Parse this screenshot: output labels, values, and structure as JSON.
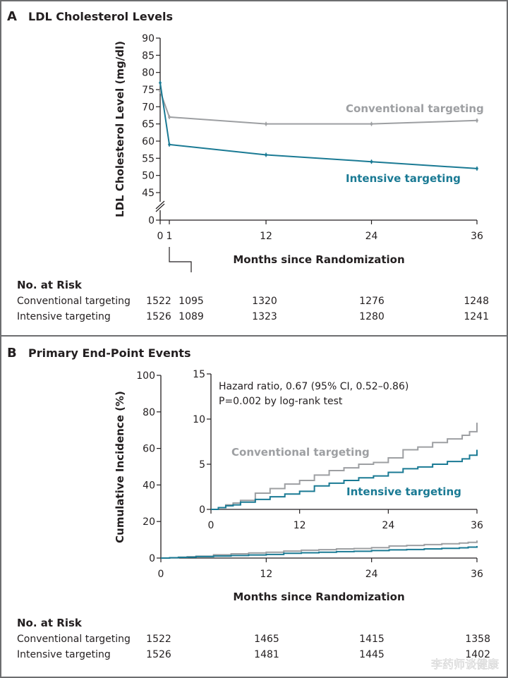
{
  "colors": {
    "conventional": "#9d9fa2",
    "intensive": "#1a7a94",
    "axis": "#231f20",
    "frame": "#6d6e70"
  },
  "watermark": "李药师谈健康",
  "chart_data": [
    {
      "panel": "A",
      "type": "line",
      "title": "LDL Cholesterol Levels",
      "xlabel": "Months since Randomization",
      "ylabel": "LDL Cholesterol Level (mg/dl)",
      "xlim": [
        0,
        36
      ],
      "ylim": [
        45,
        90
      ],
      "y_axis_break": true,
      "x_ticks": [
        0,
        1,
        12,
        24,
        36
      ],
      "x_tick_labels": [
        "0",
        "1",
        "12",
        "24",
        "36"
      ],
      "y_ticks": [
        0,
        45,
        50,
        55,
        60,
        65,
        70,
        75,
        80,
        85,
        90
      ],
      "y_tick_labels": [
        "0",
        "45",
        "50",
        "55",
        "60",
        "65",
        "70",
        "75",
        "80",
        "85",
        "90"
      ],
      "x": [
        0,
        1,
        12,
        24,
        36
      ],
      "series": [
        {
          "name": "Conventional targeting",
          "key": "conventional",
          "values": [
            74.5,
            67,
            65,
            65,
            66
          ]
        },
        {
          "name": "Intensive targeting",
          "key": "intensive",
          "values": [
            77,
            59,
            56,
            54,
            52
          ]
        }
      ],
      "no_at_risk": {
        "heading": "No. at Risk",
        "rows": [
          {
            "label": "Conventional targeting",
            "values": [
              "1522",
              "1095",
              "1320",
              "1276",
              "1248"
            ]
          },
          {
            "label": "Intensive targeting",
            "values": [
              "1526",
              "1089",
              "1323",
              "1280",
              "1241"
            ]
          }
        ]
      }
    },
    {
      "panel": "B",
      "type": "line",
      "title": "Primary End-Point Events",
      "xlabel": "Months since Randomization",
      "ylabel": "Cumulative Incidence (%)",
      "xlim": [
        0,
        36
      ],
      "ylim": [
        0,
        100
      ],
      "x_ticks": [
        0,
        12,
        24,
        36
      ],
      "x_tick_labels": [
        "0",
        "12",
        "24",
        "36"
      ],
      "y_ticks": [
        0,
        20,
        40,
        60,
        80,
        100
      ],
      "y_tick_labels": [
        "0",
        "20",
        "40",
        "60",
        "80",
        "100"
      ],
      "x": [
        0,
        1,
        2,
        3,
        4,
        6,
        8,
        10,
        12,
        14,
        16,
        18,
        20,
        22,
        24,
        26,
        28,
        30,
        32,
        34,
        35,
        36
      ],
      "series": [
        {
          "name": "Conventional targeting",
          "key": "conventional",
          "values": [
            0,
            0.2,
            0.5,
            0.7,
            1.0,
            1.8,
            2.3,
            2.8,
            3.2,
            3.8,
            4.3,
            4.6,
            5.0,
            5.2,
            5.7,
            6.6,
            6.9,
            7.4,
            7.8,
            8.2,
            8.6,
            9.6
          ]
        },
        {
          "name": "Intensive targeting",
          "key": "intensive",
          "values": [
            0,
            0.2,
            0.4,
            0.5,
            0.8,
            1.1,
            1.4,
            1.7,
            2.0,
            2.6,
            2.9,
            3.2,
            3.5,
            3.7,
            4.1,
            4.5,
            4.7,
            5.0,
            5.3,
            5.6,
            6.0,
            6.6
          ]
        }
      ],
      "inset": {
        "xlim": [
          0,
          36
        ],
        "ylim": [
          0,
          15
        ],
        "x_ticks": [
          0,
          12,
          24,
          36
        ],
        "x_tick_labels": [
          "0",
          "12",
          "24",
          "36"
        ],
        "y_ticks": [
          0,
          5,
          10,
          15
        ],
        "y_tick_labels": [
          "0",
          "5",
          "10",
          "15"
        ],
        "annotation_lines": [
          "Hazard ratio, 0.67 (95% CI, 0.52–0.86)",
          "P=0.002 by log-rank test"
        ],
        "legend_labels": {
          "conventional": "Conventional targeting",
          "intensive": "Intensive targeting"
        }
      },
      "no_at_risk": {
        "heading": "No. at Risk",
        "rows": [
          {
            "label": "Conventional targeting",
            "values": [
              "1522",
              "1465",
              "1415",
              "1358"
            ]
          },
          {
            "label": "Intensive targeting",
            "values": [
              "1526",
              "1481",
              "1445",
              "1402"
            ]
          }
        ]
      }
    }
  ]
}
